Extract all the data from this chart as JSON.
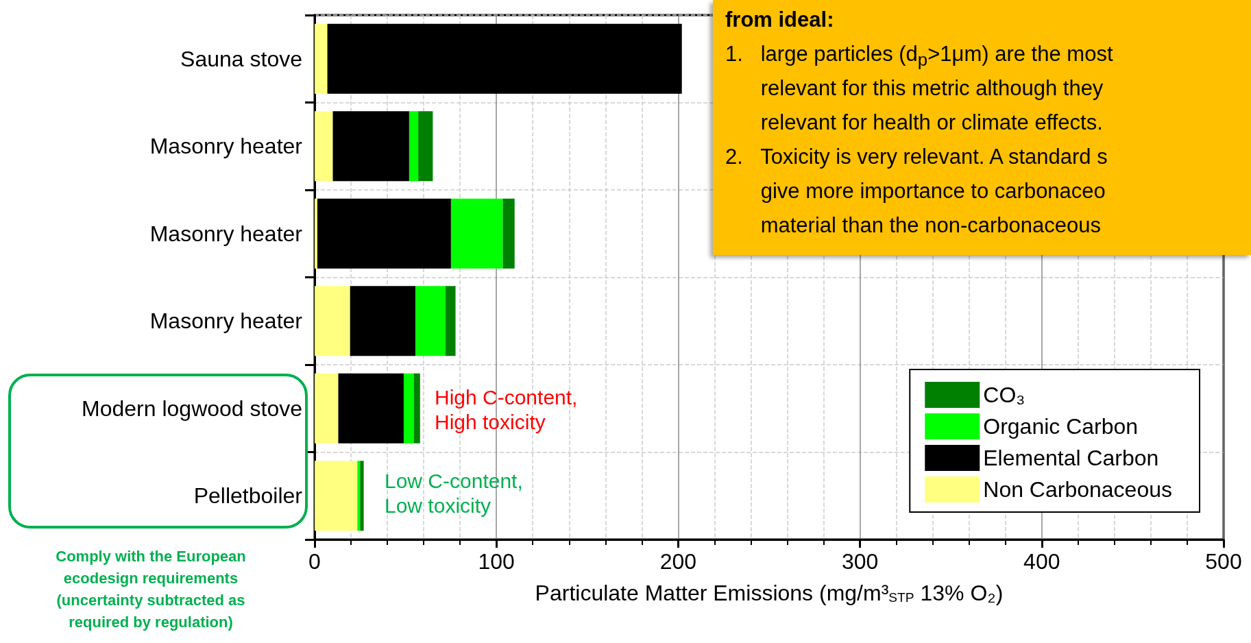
{
  "chart_data": {
    "type": "bar",
    "orientation": "horizontal",
    "stacked": true,
    "categories": [
      "Sauna stove",
      "Masonry heater",
      "Masonry heater",
      "Masonry heater",
      "Modern logwood stove",
      "Pelletboiler"
    ],
    "series": [
      {
        "name": "Non Carbonaceous",
        "color": "#ffff80",
        "values": [
          7,
          10,
          1.5,
          19.5,
          13,
          23.5
        ]
      },
      {
        "name": "Elemental Carbon",
        "color": "#000000",
        "values": [
          195,
          42,
          73.5,
          36,
          36,
          0
        ]
      },
      {
        "name": "Organic Carbon",
        "color": "#00ff00",
        "values": [
          null,
          5,
          28.5,
          16.5,
          5.5,
          1.5
        ]
      },
      {
        "name": "CO₃",
        "color": "#008000",
        "values": [
          null,
          8,
          6.5,
          5.5,
          3.5,
          2
        ]
      }
    ],
    "xlabel": "Particulate Matter Emissions (mg/m³$_{STP}$ 13% O₂)",
    "xlim": [
      0,
      500
    ],
    "xticks": [
      0,
      100,
      200,
      300,
      400,
      500
    ],
    "grid": true,
    "legend": "bottom right",
    "annotations": [
      "from ideal:\n1.   large particles (d$_{p}$>1μm) are the most\n      relevant for this metric although they\n      relevant for health or climate effects.\n2.   Toxicity is very relevant. A standard s\n      give more importance to carbonaceo\n      material than the non-carbonaceous",
      "High C-content,\nHigh toxicity",
      "Low C-content,\nLow toxicity",
      "Comply with the European\necodesign requirements\n(uncertainty subtracted as\nrequired by regulation)"
    ]
  }
}
